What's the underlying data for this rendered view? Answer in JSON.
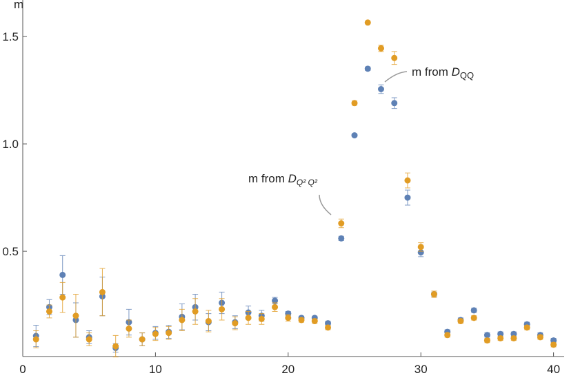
{
  "chart_data": {
    "type": "scatter",
    "y_label": "m",
    "x": [
      1,
      2,
      3,
      4,
      5,
      6,
      7,
      8,
      9,
      10,
      11,
      12,
      13,
      14,
      15,
      16,
      17,
      18,
      19,
      20,
      21,
      22,
      23,
      24,
      25,
      26,
      27,
      28,
      29,
      30,
      31,
      32,
      33,
      34,
      35,
      36,
      37,
      38,
      39,
      40
    ],
    "series": [
      {
        "color": "#5e81b5",
        "values": [
          0.106,
          0.24,
          0.39,
          0.18,
          0.1,
          0.29,
          0.05,
          0.17,
          0.09,
          0.12,
          0.125,
          0.195,
          0.24,
          0.17,
          0.26,
          0.17,
          0.215,
          0.2,
          0.27,
          0.21,
          0.19,
          0.19,
          0.165,
          0.56,
          1.04,
          1.35,
          1.255,
          1.19,
          0.75,
          0.495,
          0.3,
          0.125,
          0.18,
          0.225,
          0.11,
          0.115,
          0.115,
          0.16,
          0.11,
          0.085
        ],
        "errors": [
          0.05,
          0.035,
          0.09,
          0.08,
          0.03,
          0.09,
          0.02,
          0.06,
          0.03,
          0.03,
          0.03,
          0.06,
          0.06,
          0.04,
          0.05,
          0.03,
          0.03,
          0.025,
          0.015,
          0.01,
          0.008,
          0.008,
          0.01,
          0.01,
          0.005,
          0.008,
          0.02,
          0.025,
          0.035,
          0.02,
          0.01,
          0.01,
          0.01,
          0.01,
          0.01,
          0.01,
          0.01,
          0.01,
          0.01,
          0.01
        ]
      },
      {
        "color": "#e19c24",
        "values": [
          0.09,
          0.22,
          0.285,
          0.2,
          0.09,
          0.31,
          0.058,
          0.14,
          0.09,
          0.115,
          0.12,
          0.18,
          0.22,
          0.175,
          0.23,
          0.165,
          0.19,
          0.185,
          0.24,
          0.19,
          0.18,
          0.175,
          0.145,
          0.63,
          1.19,
          1.565,
          1.445,
          1.4,
          0.83,
          0.52,
          0.3,
          0.11,
          0.175,
          0.19,
          0.085,
          0.095,
          0.095,
          0.145,
          0.1,
          0.065
        ],
        "errors": [
          0.04,
          0.03,
          0.07,
          0.1,
          0.03,
          0.11,
          0.05,
          0.04,
          0.03,
          0.03,
          0.03,
          0.05,
          0.06,
          0.05,
          0.05,
          0.03,
          0.03,
          0.025,
          0.02,
          0.015,
          0.01,
          0.01,
          0.01,
          0.02,
          0.01,
          0.003,
          0.015,
          0.03,
          0.035,
          0.02,
          0.015,
          0.01,
          0.01,
          0.01,
          0.01,
          0.01,
          0.01,
          0.01,
          0.01,
          0.01
        ]
      }
    ],
    "annotations": [
      {
        "text": "m from ",
        "symbol": "D",
        "subscript": "QQ"
      },
      {
        "text": "m from ",
        "symbol": "D",
        "subscript": "Q² Q²"
      }
    ],
    "xlim": [
      0,
      40.8
    ],
    "ylim": [
      0.01,
      1.67
    ],
    "xticks": [
      0,
      10,
      20,
      30,
      40
    ],
    "yticks": [
      0.5,
      {
        "value": 1,
        "label": "1.0"
      },
      1.5
    ]
  }
}
